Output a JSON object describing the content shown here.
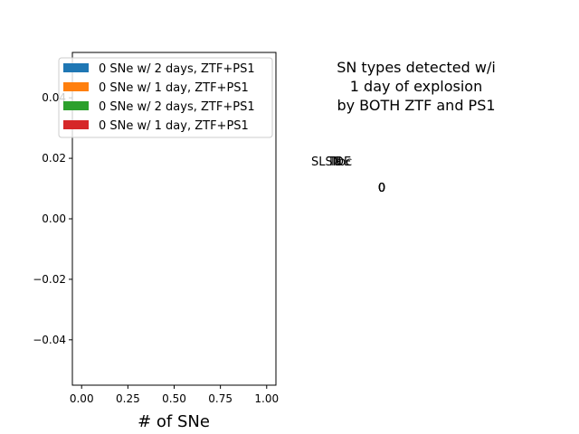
{
  "chart_data": [
    {
      "type": "bar",
      "orientation": "horizontal",
      "title": "",
      "xlabel": "# of SNe",
      "ylabel": "",
      "xlim": [
        -0.05,
        1.05
      ],
      "ylim": [
        -0.055,
        0.055
      ],
      "xticks": [
        "0.00",
        "0.25",
        "0.50",
        "0.75",
        "1.00"
      ],
      "yticks": [
        "0.04",
        "0.02",
        "0.00",
        "−0.02",
        "−0.04"
      ],
      "xtick_values": [
        0,
        0.25,
        0.5,
        0.75,
        1.0
      ],
      "ytick_values": [
        0.04,
        0.02,
        0.0,
        -0.02,
        -0.04
      ],
      "grid": false,
      "legend": {
        "placement": "upper-right",
        "entries": [
          {
            "label": "0 SNe w/ 2 days, ZTF+PS1",
            "color": "#1f77b4"
          },
          {
            "label": "0 SNe w/ 1 day, ZTF+PS1",
            "color": "#ff7f0e"
          },
          {
            "label": "0 SNe w/ 2 days, ZTF+PS1",
            "color": "#2ca02c"
          },
          {
            "label": "0 SNe w/ 1 day, ZTF+PS1",
            "color": "#d62728"
          }
        ]
      },
      "series": [
        {
          "name": "0 SNe w/ 2 days, ZTF+PS1",
          "values": []
        },
        {
          "name": "0 SNe w/ 1 day, ZTF+PS1",
          "values": []
        },
        {
          "name": "0 SNe w/ 2 days, ZTF+PS1",
          "values": []
        },
        {
          "name": "0 SNe w/ 1 day, ZTF+PS1",
          "values": []
        }
      ]
    },
    {
      "type": "pie",
      "title": "SN types detected w/i\n1 day of explosion\nby BOTH ZTF and PS1",
      "title_lines": [
        "SN types detected w/i",
        "1 day of explosion",
        "by BOTH ZTF and PS1"
      ],
      "slice_labels": [
        "SLSN",
        "TDE",
        "Ia",
        "II",
        "Ibc"
      ],
      "slice_values": [
        0,
        0,
        0,
        0,
        0
      ],
      "pct_labels": [
        "0",
        "0",
        "0",
        "0",
        "0"
      ]
    }
  ]
}
